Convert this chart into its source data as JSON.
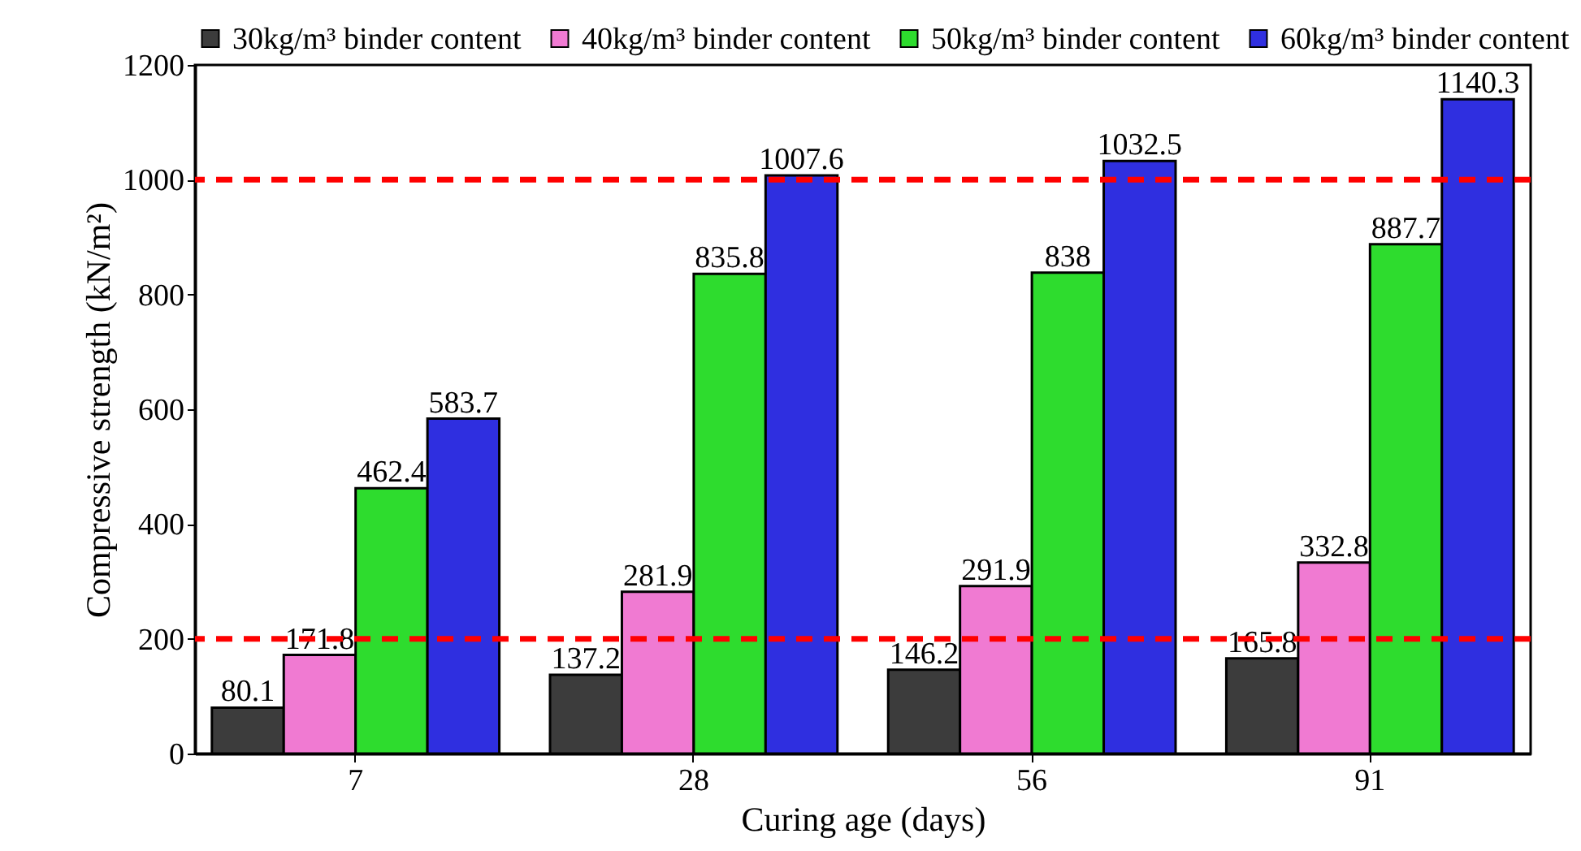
{
  "chart_data": {
    "type": "bar",
    "xlabel": "Curing age (days)",
    "ylabel": "Compressive strength (kN/m²)",
    "categories": [
      "7",
      "28",
      "56",
      "91"
    ],
    "series": [
      {
        "name": "30kg/m³ binder content",
        "color": "#3c3c3c",
        "values": [
          80.1,
          137.2,
          146.2,
          165.8
        ]
      },
      {
        "name": "40kg/m³ binder content",
        "color": "#f07ad2",
        "values": [
          171.8,
          281.9,
          291.9,
          332.8
        ]
      },
      {
        "name": "50kg/m³ binder content",
        "color": "#2edc2e",
        "values": [
          462.4,
          835.8,
          838,
          887.7
        ]
      },
      {
        "name": "60kg/m³ binder content",
        "color": "#2f2fe0",
        "values": [
          583.7,
          1007.6,
          1032.5,
          1140.3
        ]
      }
    ],
    "ylim": [
      0,
      1200
    ],
    "yticks": [
      0,
      200,
      400,
      600,
      800,
      1000,
      1200
    ],
    "ref_lines": [
      {
        "axis": "y",
        "value": 200,
        "color": "#ff0000",
        "line_style": "dashed"
      },
      {
        "axis": "y",
        "value": 1000,
        "color": "#ff0000",
        "line_style": "dashed"
      }
    ],
    "data_labels": true,
    "grid": false,
    "legend": "top"
  }
}
